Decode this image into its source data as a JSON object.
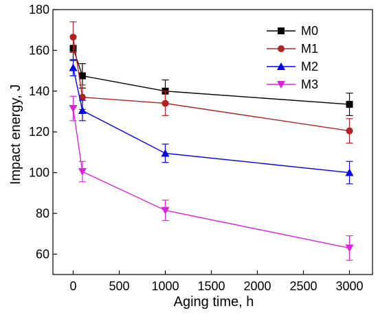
{
  "chart_data": {
    "type": "line",
    "title": "",
    "xlabel": "Aging time, h",
    "ylabel": "Impact energy, J",
    "xlim": [
      -220,
      3250
    ],
    "ylim": [
      50,
      180
    ],
    "xticks": [
      0,
      500,
      1000,
      1500,
      2000,
      2500,
      3000
    ],
    "yticks": [
      60,
      80,
      100,
      120,
      140,
      160,
      180
    ],
    "x_tick_labels": [
      "0",
      "500",
      "1000",
      "1500",
      "2000",
      "2500",
      "3000"
    ],
    "y_tick_labels": [
      "60",
      "80",
      "100",
      "120",
      "140",
      "160",
      "180"
    ],
    "grid": false,
    "legend_position": "top-right",
    "series": [
      {
        "name": "M0",
        "color": "#000000",
        "marker": "square",
        "x": [
          0,
          100,
          1000,
          3000
        ],
        "y": [
          161,
          147.5,
          140,
          133.5
        ],
        "err": [
          6,
          6,
          5.5,
          5.5
        ]
      },
      {
        "name": "M1",
        "color": "#b22222",
        "marker": "circle",
        "x": [
          0,
          100,
          1000,
          3000
        ],
        "y": [
          166.5,
          137,
          134,
          120.5
        ],
        "err": [
          7.5,
          6,
          6,
          6
        ]
      },
      {
        "name": "M2",
        "color": "#0000ee",
        "marker": "triangle-up",
        "x": [
          0,
          100,
          1000,
          3000
        ],
        "y": [
          151.5,
          130.5,
          109.5,
          100
        ],
        "err": [
          4,
          5,
          4.5,
          5.5
        ]
      },
      {
        "name": "M3",
        "color": "#dd22dd",
        "marker": "triangle-down",
        "x": [
          0,
          100,
          1000,
          3000
        ],
        "y": [
          131.5,
          100.5,
          81.5,
          63
        ],
        "err": [
          6,
          5,
          5,
          6
        ]
      }
    ]
  }
}
